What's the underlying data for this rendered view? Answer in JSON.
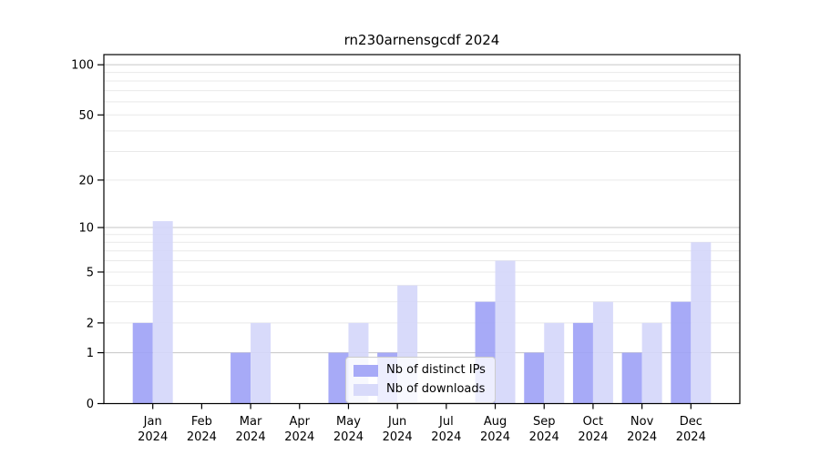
{
  "chart_data": {
    "type": "bar",
    "title": "rn230arnensgcdf 2024",
    "categories": [
      "Jan",
      "Feb",
      "Mar",
      "Apr",
      "May",
      "Jun",
      "Jul",
      "Aug",
      "Sep",
      "Oct",
      "Nov",
      "Dec"
    ],
    "year_label": "2024",
    "series": [
      {
        "name": "Nb of distinct IPs",
        "color": "#9da1f6",
        "values": [
          2,
          0,
          1,
          0,
          1,
          1,
          0,
          3,
          1,
          2,
          1,
          3
        ]
      },
      {
        "name": "Nb of downloads",
        "color": "#d4d6f9",
        "values": [
          11,
          0,
          2,
          0,
          2,
          4,
          0,
          6,
          2,
          3,
          2,
          8
        ]
      }
    ],
    "yscale": "log1p",
    "ylim": [
      0,
      115
    ],
    "yticks": [
      100,
      50,
      20,
      10,
      5,
      2,
      1,
      0
    ],
    "ytick_labels": [
      "100",
      "50",
      "20",
      "10",
      "5",
      "2",
      "1",
      "0"
    ],
    "grid_major": [
      1,
      10,
      100
    ],
    "grid_minor": [
      2,
      3,
      4,
      5,
      6,
      7,
      8,
      9,
      20,
      30,
      40,
      50,
      60,
      70,
      80,
      90
    ],
    "legend_position": "lower center",
    "grid_on": true,
    "colors": {
      "grid_major": "#c6c6c6",
      "grid_minor": "#e9e9e9",
      "spine": "#000000",
      "text": "#000000",
      "legend_border": "#cccccc",
      "legend_bg": "rgba(255,255,255,0.8)",
      "background": "#ffffff"
    }
  }
}
